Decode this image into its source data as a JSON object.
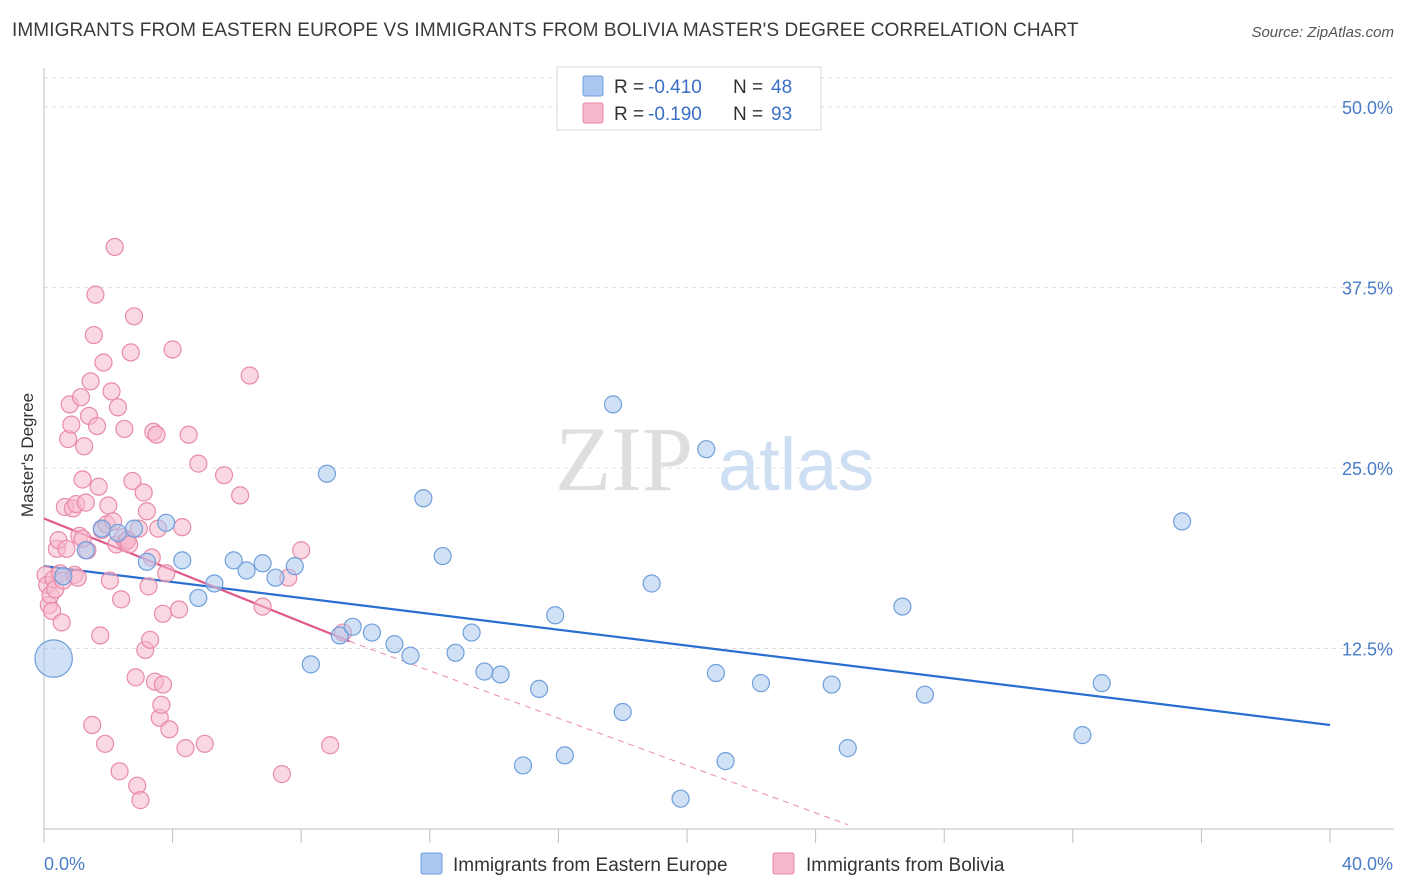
{
  "title": "IMMIGRANTS FROM EASTERN EUROPE VS IMMIGRANTS FROM BOLIVIA MASTER'S DEGREE CORRELATION CHART",
  "source": "Source: ZipAtlas.com",
  "colors": {
    "blue_fill": "#aac8ef",
    "blue_stroke": "#6f9fdc",
    "blue_line": "#2a6fd0",
    "pink_fill": "#f6b8cb",
    "pink_stroke": "#e98aa8",
    "pink_line": "#e0588a",
    "grid": "#dcdcdc",
    "tick_text": "#4a7cc8"
  },
  "legend_top": {
    "rows": [
      {
        "r_label": "R =",
        "r_value": "-0.410",
        "n_label": "N =",
        "n_value": "48"
      },
      {
        "r_label": "R =",
        "r_value": "-0.190",
        "n_label": "N =",
        "n_value": "93"
      }
    ]
  },
  "watermark": {
    "zip": "ZIP",
    "atlas": "atlas"
  },
  "chart_data": {
    "type": "scatter",
    "title": "IMMIGRANTS FROM EASTERN EUROPE VS IMMIGRANTS FROM BOLIVIA MASTER'S DEGREE CORRELATION CHART",
    "xlabel": "",
    "ylabel": "Master's Degree",
    "xlim": [
      0,
      40
    ],
    "ylim": [
      0,
      52
    ],
    "x_tick_labels": [
      "0.0%",
      "40.0%"
    ],
    "y_ticks": [
      12.5,
      25.0,
      37.5,
      50.0
    ],
    "y_tick_labels": [
      "12.5%",
      "25.0%",
      "37.5%",
      "50.0%"
    ],
    "legend_position": "bottom-center",
    "series": [
      {
        "name": "Immigrants from Eastern Europe",
        "color": "#aac8ef",
        "points": [
          [
            0.3,
            11.8,
            2.2
          ],
          [
            0.6,
            17.5,
            1
          ],
          [
            1.3,
            19.3,
            1
          ],
          [
            1.8,
            20.8,
            1
          ],
          [
            2.3,
            20.5,
            1
          ],
          [
            2.8,
            20.8,
            1
          ],
          [
            3.2,
            18.5,
            1
          ],
          [
            3.8,
            21.2,
            1
          ],
          [
            4.3,
            18.6,
            1
          ],
          [
            4.8,
            16.0,
            1
          ],
          [
            5.3,
            17.0,
            1
          ],
          [
            5.9,
            18.6,
            1
          ],
          [
            6.3,
            17.9,
            1
          ],
          [
            6.8,
            18.4,
            1
          ],
          [
            7.2,
            17.4,
            1
          ],
          [
            7.8,
            18.2,
            1
          ],
          [
            8.3,
            11.4,
            1
          ],
          [
            8.8,
            24.6,
            1
          ],
          [
            9.2,
            13.4,
            1
          ],
          [
            9.6,
            14.0,
            1
          ],
          [
            10.2,
            13.6,
            1
          ],
          [
            10.9,
            12.8,
            1
          ],
          [
            11.4,
            12.0,
            1
          ],
          [
            11.8,
            22.9,
            1
          ],
          [
            12.4,
            18.9,
            1
          ],
          [
            12.8,
            12.2,
            1
          ],
          [
            13.3,
            13.6,
            1
          ],
          [
            13.7,
            10.9,
            1
          ],
          [
            14.2,
            10.7,
            1
          ],
          [
            14.9,
            4.4,
            1
          ],
          [
            15.4,
            9.7,
            1
          ],
          [
            15.9,
            14.8,
            1
          ],
          [
            16.2,
            5.1,
            1
          ],
          [
            17.7,
            29.4,
            1
          ],
          [
            18.0,
            8.1,
            1
          ],
          [
            18.9,
            17.0,
            1
          ],
          [
            19.8,
            2.1,
            1
          ],
          [
            20.6,
            26.3,
            1
          ],
          [
            20.9,
            10.8,
            1
          ],
          [
            21.2,
            4.7,
            1
          ],
          [
            22.3,
            10.1,
            1
          ],
          [
            24.5,
            10.0,
            1
          ],
          [
            25.0,
            5.6,
            1
          ],
          [
            26.7,
            15.4,
            1
          ],
          [
            27.4,
            9.3,
            1
          ],
          [
            32.3,
            6.5,
            1
          ],
          [
            32.9,
            10.1,
            1
          ],
          [
            35.4,
            21.3,
            1
          ]
        ]
      },
      {
        "name": "Immigrants from Bolivia",
        "color": "#f6b8cb",
        "points": [
          [
            0.05,
            17.6,
            1
          ],
          [
            0.1,
            16.9,
            1
          ],
          [
            0.15,
            15.5,
            1
          ],
          [
            0.2,
            16.2,
            1
          ],
          [
            0.25,
            15.1,
            1
          ],
          [
            0.3,
            17.3,
            1
          ],
          [
            0.35,
            16.6,
            1
          ],
          [
            0.4,
            19.4,
            1
          ],
          [
            0.45,
            20.0,
            1
          ],
          [
            0.5,
            17.7,
            1
          ],
          [
            0.55,
            14.3,
            1
          ],
          [
            0.6,
            17.2,
            1
          ],
          [
            0.65,
            22.3,
            1
          ],
          [
            0.7,
            19.4,
            1
          ],
          [
            0.75,
            27.0,
            1
          ],
          [
            0.8,
            29.4,
            1
          ],
          [
            0.85,
            28.0,
            1
          ],
          [
            0.9,
            22.2,
            1
          ],
          [
            0.95,
            17.6,
            1
          ],
          [
            1.0,
            22.5,
            1
          ],
          [
            1.05,
            17.4,
            1
          ],
          [
            1.1,
            20.3,
            1
          ],
          [
            1.15,
            29.9,
            1
          ],
          [
            1.2,
            24.2,
            1
          ],
          [
            1.25,
            26.5,
            1
          ],
          [
            1.3,
            22.6,
            1
          ],
          [
            1.35,
            19.3,
            1
          ],
          [
            1.4,
            28.6,
            1
          ],
          [
            1.45,
            31.0,
            1
          ],
          [
            1.5,
            7.2,
            1
          ],
          [
            1.55,
            34.2,
            1
          ],
          [
            1.6,
            37.0,
            1
          ],
          [
            1.65,
            27.9,
            1
          ],
          [
            1.7,
            23.7,
            1
          ],
          [
            1.75,
            13.4,
            1
          ],
          [
            1.8,
            20.7,
            1
          ],
          [
            1.85,
            32.3,
            1
          ],
          [
            1.9,
            5.9,
            1
          ],
          [
            1.95,
            21.1,
            1
          ],
          [
            2.0,
            22.4,
            1
          ],
          [
            2.05,
            17.2,
            1
          ],
          [
            2.1,
            30.3,
            1
          ],
          [
            2.15,
            21.3,
            1
          ],
          [
            2.2,
            40.3,
            1
          ],
          [
            2.25,
            19.7,
            1
          ],
          [
            2.3,
            29.2,
            1
          ],
          [
            2.35,
            4.0,
            1
          ],
          [
            2.4,
            15.9,
            1
          ],
          [
            2.45,
            20.2,
            1
          ],
          [
            2.5,
            27.7,
            1
          ],
          [
            2.55,
            19.9,
            1
          ],
          [
            2.6,
            20.0,
            1
          ],
          [
            2.65,
            19.7,
            1
          ],
          [
            2.7,
            33.0,
            1
          ],
          [
            2.75,
            24.1,
            1
          ],
          [
            2.8,
            35.5,
            1
          ],
          [
            2.85,
            10.5,
            1
          ],
          [
            2.9,
            3.0,
            1
          ],
          [
            2.95,
            20.8,
            1
          ],
          [
            3.0,
            2.0,
            1
          ],
          [
            3.1,
            23.3,
            1
          ],
          [
            3.15,
            12.4,
            1
          ],
          [
            3.2,
            22.0,
            1
          ],
          [
            3.25,
            16.8,
            1
          ],
          [
            3.3,
            13.1,
            1
          ],
          [
            3.35,
            18.8,
            1
          ],
          [
            3.4,
            27.5,
            1
          ],
          [
            3.45,
            10.2,
            1
          ],
          [
            3.5,
            27.3,
            1
          ],
          [
            3.55,
            20.8,
            1
          ],
          [
            3.6,
            7.7,
            1
          ],
          [
            3.65,
            8.6,
            1
          ],
          [
            3.7,
            14.9,
            1
          ],
          [
            3.8,
            17.7,
            1
          ],
          [
            3.9,
            6.9,
            1
          ],
          [
            4.0,
            33.2,
            1
          ],
          [
            4.2,
            15.2,
            1
          ],
          [
            4.3,
            20.9,
            1
          ],
          [
            4.4,
            5.6,
            1
          ],
          [
            4.5,
            27.3,
            1
          ],
          [
            4.8,
            25.3,
            1
          ],
          [
            5.0,
            5.9,
            1
          ],
          [
            5.6,
            24.5,
            1
          ],
          [
            6.1,
            23.1,
            1
          ],
          [
            6.4,
            31.4,
            1
          ],
          [
            6.8,
            15.4,
            1
          ],
          [
            7.4,
            3.8,
            1
          ],
          [
            7.6,
            17.4,
            1
          ],
          [
            8.0,
            19.3,
            1
          ],
          [
            8.9,
            5.8,
            1
          ],
          [
            9.3,
            13.6,
            1
          ],
          [
            3.7,
            10.0,
            1
          ],
          [
            1.2,
            20.1,
            1
          ]
        ]
      }
    ],
    "trendlines": [
      {
        "series": "Immigrants from Eastern Europe",
        "x": [
          0,
          40
        ],
        "y": [
          18.2,
          7.2
        ],
        "style": "solid"
      },
      {
        "series": "Immigrants from Bolivia",
        "x": [
          0,
          9.5
        ],
        "y": [
          21.5,
          13.0
        ],
        "style": "solid"
      },
      {
        "series": "Immigrants from Bolivia",
        "x": [
          9.5,
          25.0
        ],
        "y": [
          13.0,
          0.3
        ],
        "style": "dashed"
      }
    ]
  }
}
